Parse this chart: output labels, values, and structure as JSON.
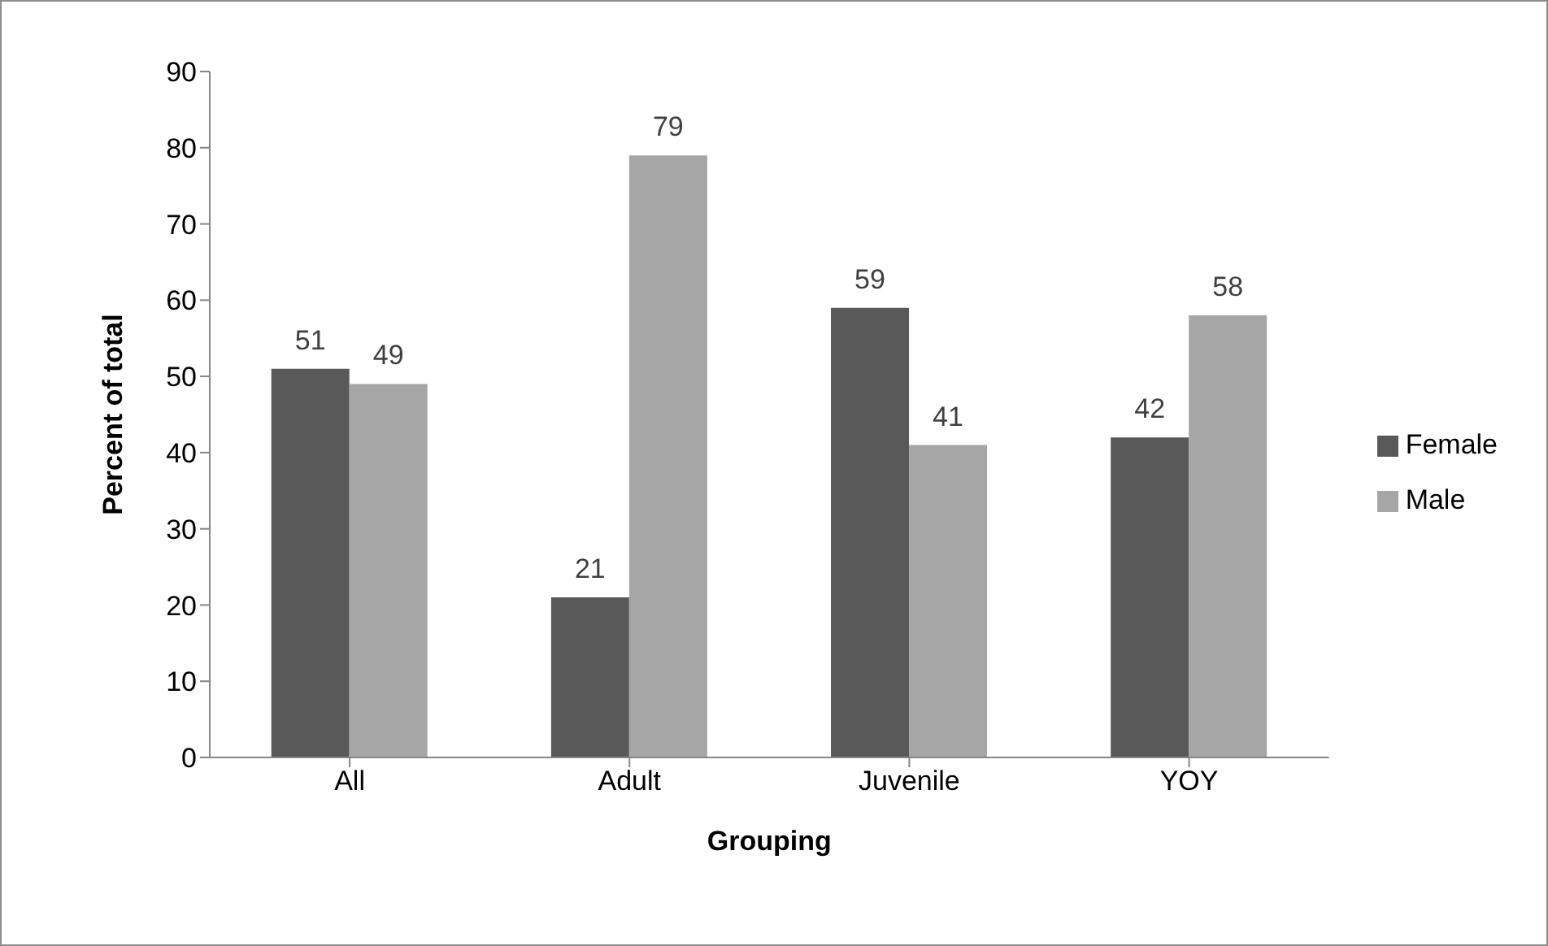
{
  "chart_data": {
    "type": "bar",
    "xlabel": "Grouping",
    "ylabel": "Percent of total",
    "categories": [
      "All",
      "Adult",
      "Juvenile",
      "YOY"
    ],
    "series": [
      {
        "name": "Female",
        "color": "#595959",
        "values": [
          51,
          21,
          59,
          42
        ]
      },
      {
        "name": "Male",
        "color": "#a6a6a6",
        "values": [
          49,
          79,
          41,
          58
        ]
      }
    ],
    "ylim": [
      0,
      90
    ],
    "yticks": [
      0,
      10,
      20,
      30,
      40,
      50,
      60,
      70,
      80,
      90
    ],
    "grid": false,
    "legend": "right",
    "data_labels": true
  }
}
